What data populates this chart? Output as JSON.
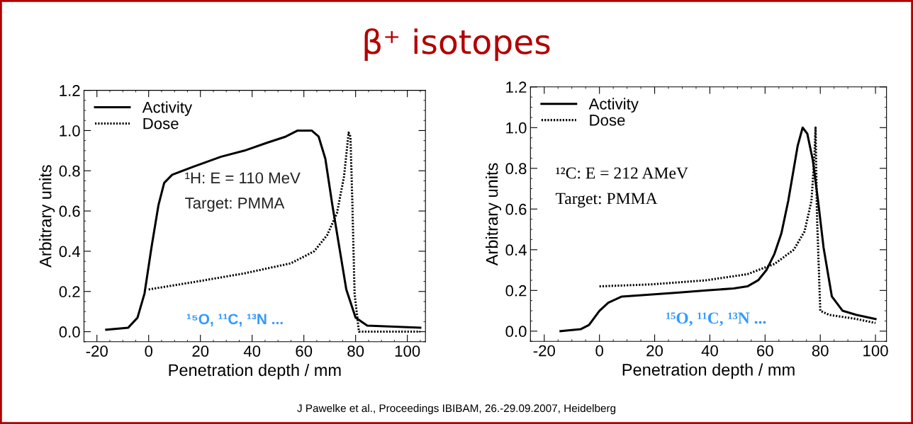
{
  "chart_data": [
    {
      "type": "line",
      "title": "β⁺ isotopes",
      "xlabel": "Penetration depth / mm",
      "ylabel": "Arbitrary units",
      "annotations": [
        "¹H: E = 110 MeV",
        "Target: PMMA",
        "¹⁵O, ¹¹C, ¹³N ..."
      ],
      "xlim": [
        -25,
        107
      ],
      "ylim": [
        -0.05,
        1.2
      ],
      "xticks": [
        -20,
        0,
        20,
        40,
        60,
        80,
        100
      ],
      "yticks": [
        {
          "value": 0,
          "label": "0.0"
        },
        {
          "value": 0.2,
          "label": "0.2"
        },
        {
          "value": 0.4,
          "label": "0.4"
        },
        {
          "value": 0.6,
          "label": "0.6"
        },
        {
          "value": 0.8,
          "label": "0.8"
        },
        {
          "value": 1.0,
          "label": "1.0"
        },
        {
          "value": 1.2,
          "label": "1.2"
        }
      ],
      "grid": false,
      "legend": "top left",
      "series": [
        {
          "name": "Activity",
          "color": "#000000",
          "line_style": "solid",
          "x": [
            -16.4,
            -7.9,
            -4.3,
            -1.6,
            1.1,
            3.8,
            6,
            9.1,
            17.2,
            28,
            37,
            45.9,
            53,
            57.6,
            63,
            65.7,
            68.3,
            71,
            73.7,
            76.4,
            80,
            84.5,
            105
          ],
          "values": [
            0.01,
            0.02,
            0.07,
            0.19,
            0.42,
            0.63,
            0.74,
            0.78,
            0.82,
            0.87,
            0.9,
            0.94,
            0.97,
            1.0,
            1.0,
            0.97,
            0.86,
            0.63,
            0.42,
            0.21,
            0.07,
            0.03,
            0.02
          ]
        },
        {
          "name": "Dose",
          "color": "#000000",
          "line_style": "dotted",
          "x": [
            0,
            19,
            37,
            55,
            64,
            69,
            72.8,
            75.5,
            77.3,
            78,
            78.7,
            79.6,
            81.3,
            105
          ],
          "values": [
            0.21,
            0.25,
            0.29,
            0.34,
            0.4,
            0.48,
            0.59,
            0.77,
            0.99,
            0.97,
            0.66,
            0.19,
            0.0,
            0.0
          ]
        }
      ]
    },
    {
      "type": "line",
      "xlabel": "Penetration depth / mm",
      "ylabel": "Arbitrary units",
      "annotations": [
        "¹²C: E = 212 AMeV",
        "Target: PMMA",
        "¹⁵O, ¹¹C, ¹³N ...",
        "J Pawelke et al., Proceedings IBIBAM, 26.-29.09.2007, Heidelberg"
      ],
      "xlim": [
        -25,
        104
      ],
      "ylim": [
        -0.05,
        1.2
      ],
      "xticks": [
        -20,
        0,
        20,
        40,
        60,
        80,
        100
      ],
      "yticks": [
        {
          "value": 0,
          "label": "0.0"
        },
        {
          "value": 0.2,
          "label": "0.2"
        },
        {
          "value": 0.4,
          "label": "0.4"
        },
        {
          "value": 0.6,
          "label": "0.6"
        },
        {
          "value": 0.8,
          "label": "0.8"
        },
        {
          "value": 1.0,
          "label": "1.0"
        },
        {
          "value": 1.2,
          "label": "1.2"
        }
      ],
      "grid": false,
      "legend": "top left",
      "series": [
        {
          "name": "Activity",
          "color": "#000000",
          "line_style": "solid",
          "x": [
            -14.1,
            -6.7,
            -3.8,
            0,
            3.2,
            8.1,
            19,
            28.9,
            38.7,
            48.6,
            53.6,
            57.5,
            60.5,
            63.4,
            65.9,
            68.4,
            71.8,
            73.6,
            75.3,
            77.3,
            79.2,
            81.2,
            84.2,
            88.1,
            93,
            100
          ],
          "values": [
            0.0,
            0.01,
            0.03,
            0.1,
            0.14,
            0.17,
            0.18,
            0.19,
            0.2,
            0.21,
            0.22,
            0.25,
            0.3,
            0.38,
            0.48,
            0.64,
            0.91,
            1.0,
            0.97,
            0.84,
            0.64,
            0.41,
            0.17,
            0.1,
            0.08,
            0.06
          ]
        },
        {
          "name": "Dose",
          "color": "#000000",
          "line_style": "dotted",
          "x": [
            0,
            19,
            38.7,
            53.6,
            63.4,
            70.4,
            74.3,
            76.8,
            77.8,
            78.3,
            78.8,
            80,
            83.2,
            93,
            100
          ],
          "values": [
            0.22,
            0.23,
            0.25,
            0.28,
            0.33,
            0.4,
            0.49,
            0.64,
            0.84,
            1.0,
            0.57,
            0.1,
            0.08,
            0.06,
            0.04
          ]
        }
      ]
    }
  ]
}
